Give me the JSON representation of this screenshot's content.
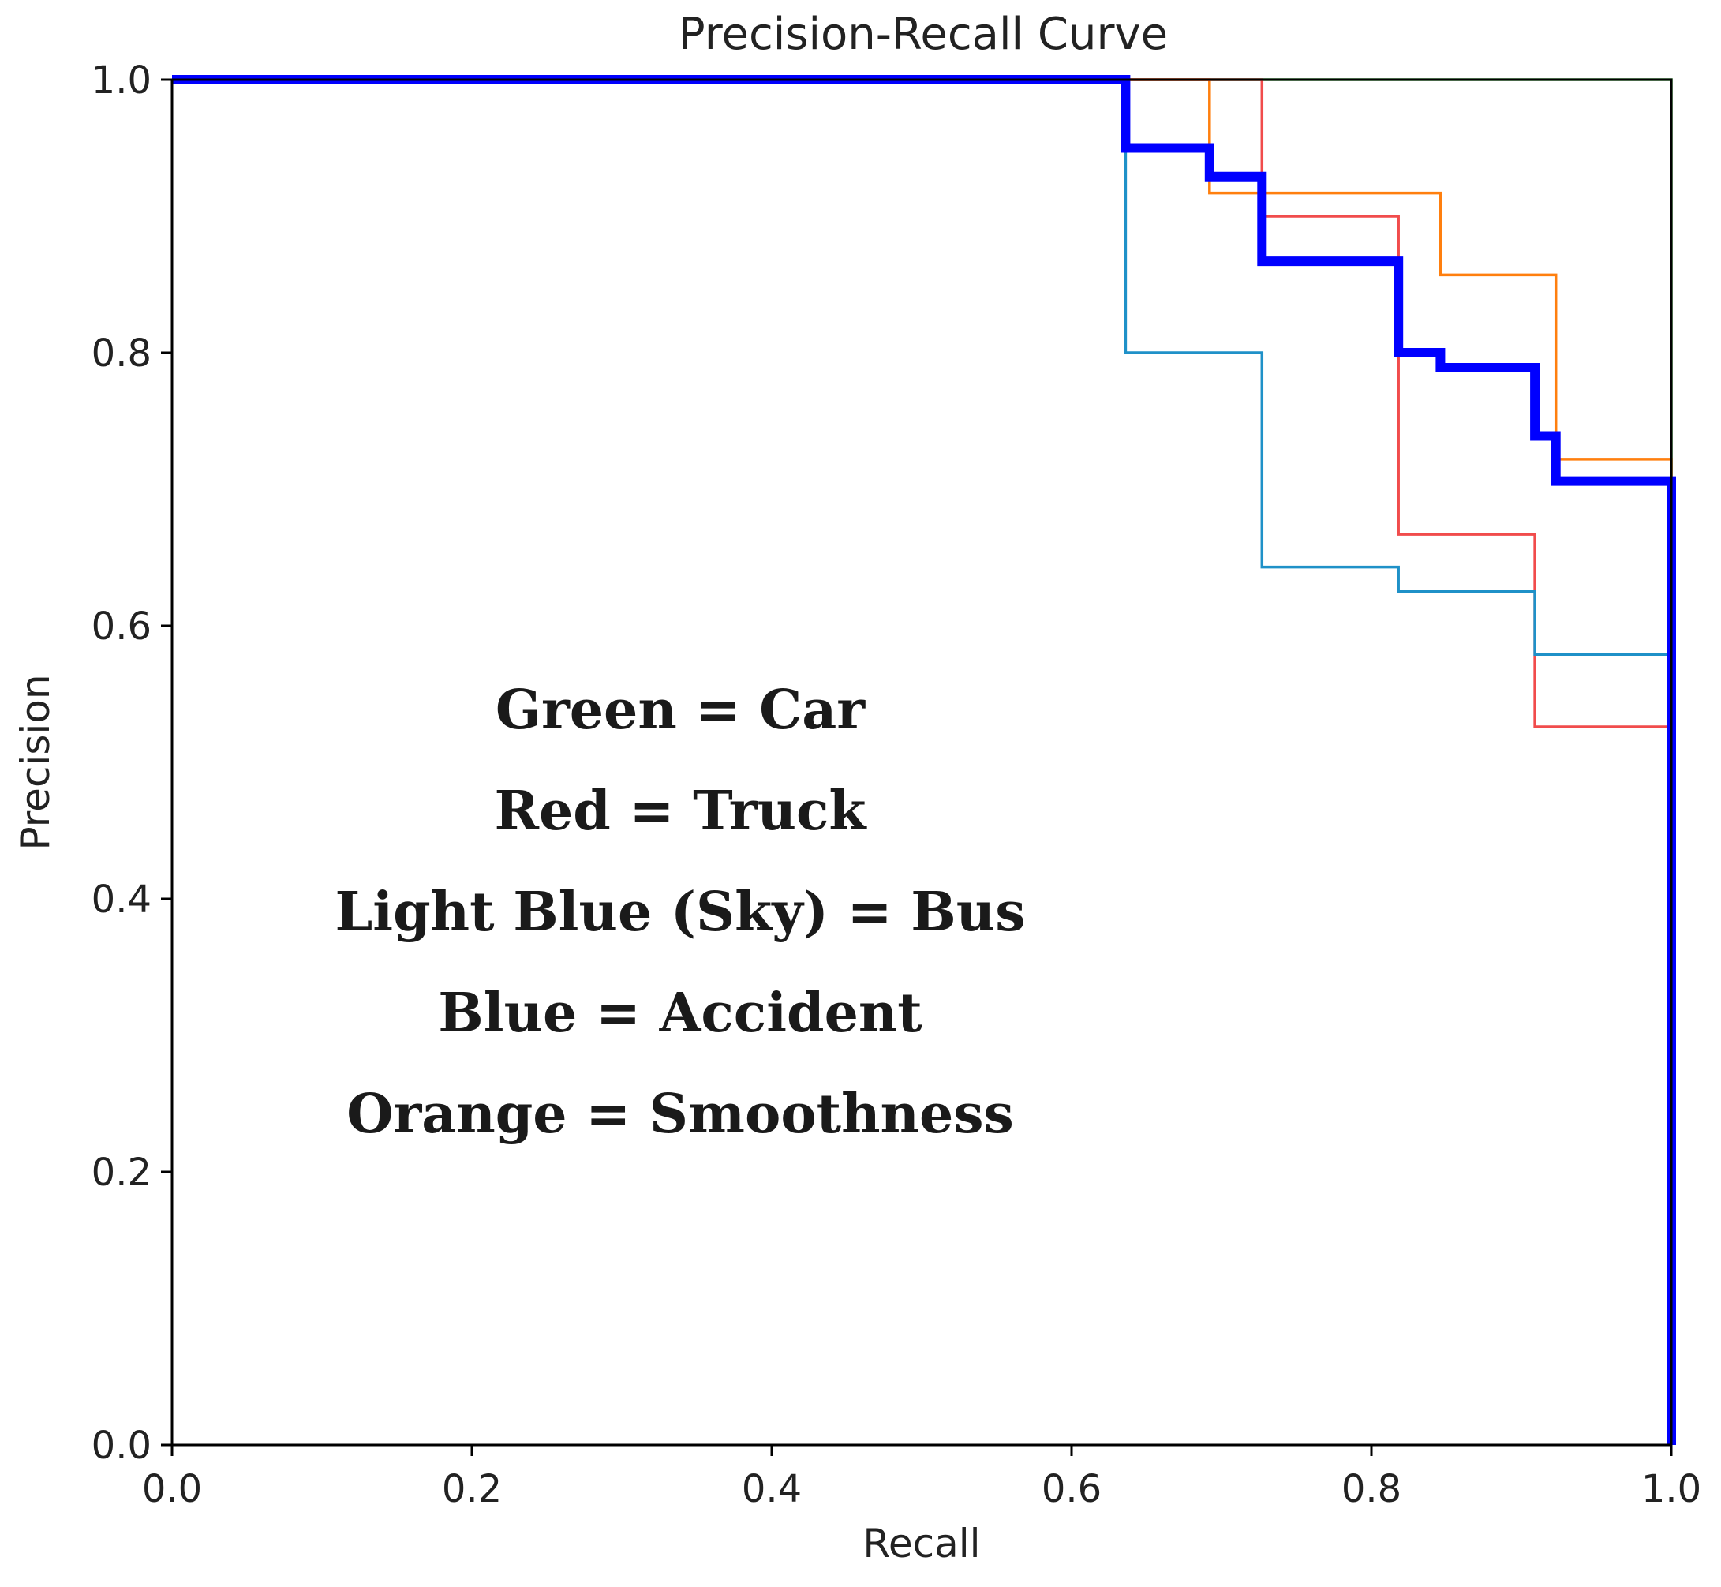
{
  "chart_data": {
    "type": "line",
    "title": "Precision-Recall Curve",
    "xlabel": "Recall",
    "ylabel": "Precision",
    "xlim": [
      0.0,
      1.0
    ],
    "ylim": [
      0.0,
      1.0
    ],
    "xticks": [
      "0.0",
      "0.2",
      "0.4",
      "0.6",
      "0.8",
      "1.0"
    ],
    "yticks": [
      "0.0",
      "0.2",
      "0.4",
      "0.6",
      "0.8",
      "1.0"
    ],
    "grid": false,
    "annotation": [
      "Green = Car",
      "Red = Truck",
      "Light Blue (Sky) = Bus",
      "Blue = Accident",
      "Orange = Smoothness"
    ],
    "series": [
      {
        "name": "Car",
        "color": "#2ca02c",
        "points": [
          [
            0.0,
            1.0
          ],
          [
            1.0,
            1.0
          ],
          [
            1.0,
            0.0
          ]
        ]
      },
      {
        "name": "Smoothness",
        "color": "#ff7f0e",
        "points": [
          [
            0.0,
            1.0
          ],
          [
            0.692,
            1.0
          ],
          [
            0.692,
            0.917
          ],
          [
            0.846,
            0.917
          ],
          [
            0.846,
            0.857
          ],
          [
            0.923,
            0.857
          ],
          [
            0.923,
            0.722
          ],
          [
            1.0,
            0.722
          ],
          [
            1.0,
            0.0
          ]
        ]
      },
      {
        "name": "Truck",
        "color": "#f14c4c",
        "points": [
          [
            0.0,
            1.0
          ],
          [
            0.727,
            1.0
          ],
          [
            0.727,
            0.9
          ],
          [
            0.818,
            0.9
          ],
          [
            0.818,
            0.667
          ],
          [
            0.909,
            0.667
          ],
          [
            0.909,
            0.526
          ],
          [
            1.0,
            0.526
          ],
          [
            1.0,
            0.0
          ]
        ]
      },
      {
        "name": "Bus",
        "color": "#1f91c8",
        "points": [
          [
            0.0,
            1.0
          ],
          [
            0.636,
            1.0
          ],
          [
            0.636,
            0.8
          ],
          [
            0.727,
            0.8
          ],
          [
            0.727,
            0.643
          ],
          [
            0.818,
            0.643
          ],
          [
            0.818,
            0.625
          ],
          [
            0.909,
            0.625
          ],
          [
            0.909,
            0.579
          ],
          [
            1.0,
            0.579
          ],
          [
            1.0,
            0.0
          ]
        ]
      },
      {
        "name": "Accident",
        "color": "#0000ff",
        "width": "thick",
        "points": [
          [
            0.0,
            1.0
          ],
          [
            0.636,
            1.0
          ],
          [
            0.636,
            0.95
          ],
          [
            0.692,
            0.95
          ],
          [
            0.692,
            0.929
          ],
          [
            0.727,
            0.929
          ],
          [
            0.727,
            0.867
          ],
          [
            0.818,
            0.867
          ],
          [
            0.818,
            0.8
          ],
          [
            0.846,
            0.8
          ],
          [
            0.846,
            0.789
          ],
          [
            0.909,
            0.789
          ],
          [
            0.909,
            0.739
          ],
          [
            0.923,
            0.739
          ],
          [
            0.923,
            0.706
          ],
          [
            1.0,
            0.706
          ],
          [
            1.0,
            0.0
          ]
        ]
      }
    ]
  }
}
